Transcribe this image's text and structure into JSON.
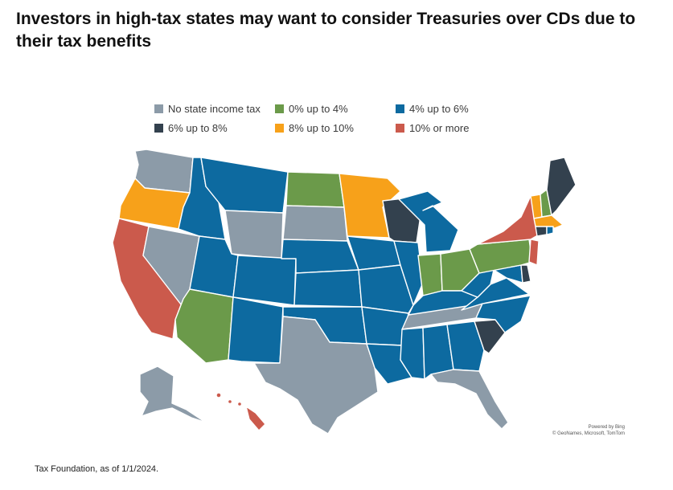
{
  "headline": "Investors in high-tax states may want to consider Treasuries over CDs due to their tax benefits",
  "legend": [
    {
      "label": "No state income tax",
      "color": "#8c9ba8"
    },
    {
      "label": "0% up to 4%",
      "color": "#6b9a4a"
    },
    {
      "label": "4% up to 6%",
      "color": "#0d6aa0"
    },
    {
      "label": "6% up to 8%",
      "color": "#33414e"
    },
    {
      "label": "8% up to 10%",
      "color": "#f7a11a"
    },
    {
      "label": "10% or more",
      "color": "#cb5a4c"
    }
  ],
  "credit": {
    "line1": "Powered by Bing",
    "line2": "© GeoNames, Microsoft, TomTom"
  },
  "source": "Tax Foundation, as of 1/1/2024.",
  "states": {
    "WA": "No state income tax",
    "OR": "8% up to 10%",
    "CA": "10% or more",
    "NV": "No state income tax",
    "ID": "4% up to 6%",
    "MT": "4% up to 6%",
    "WY": "No state income tax",
    "UT": "4% up to 6%",
    "AZ": "0% up to 4%",
    "CO": "4% up to 6%",
    "NM": "4% up to 6%",
    "ND": "0% up to 4%",
    "SD": "No state income tax",
    "NE": "4% up to 6%",
    "KS": "4% up to 6%",
    "OK": "4% up to 6%",
    "TX": "No state income tax",
    "MN": "8% up to 10%",
    "IA": "4% up to 6%",
    "MO": "4% up to 6%",
    "AR": "4% up to 6%",
    "LA": "4% up to 6%",
    "WI": "6% up to 8%",
    "IL": "4% up to 6%",
    "MI": "4% up to 6%",
    "IN": "0% up to 4%",
    "OH": "0% up to 4%",
    "KY": "4% up to 6%",
    "TN": "No state income tax",
    "MS": "4% up to 6%",
    "AL": "4% up to 6%",
    "GA": "4% up to 6%",
    "FL": "No state income tax",
    "SC": "6% up to 8%",
    "NC": "4% up to 6%",
    "VA": "4% up to 6%",
    "WV": "4% up to 6%",
    "MD": "4% up to 6%",
    "DE": "6% up to 8%",
    "PA": "0% up to 4%",
    "NY": "10% or more",
    "NJ": "10% or more",
    "CT": "6% up to 8%",
    "RI": "4% up to 6%",
    "MA": "8% up to 10%",
    "VT": "8% up to 10%",
    "NH": "0% up to 4%",
    "ME": "6% up to 8%",
    "AK": "No state income tax",
    "HI": "10% or more"
  }
}
